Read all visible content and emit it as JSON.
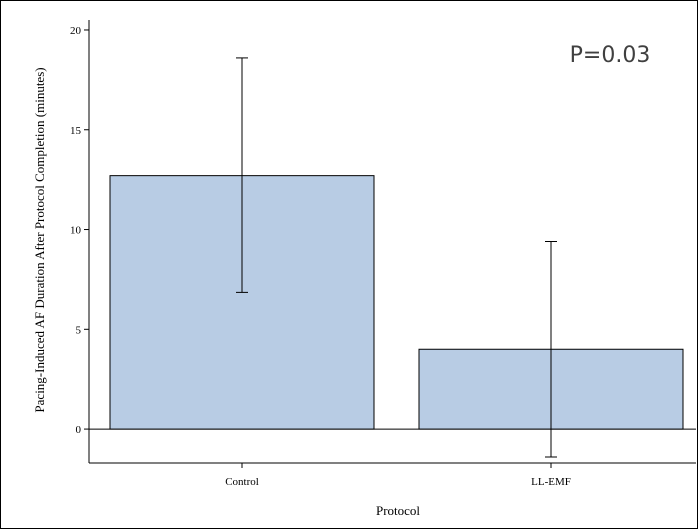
{
  "chart_data": {
    "type": "bar",
    "categories": [
      "Control",
      "LL-EMF"
    ],
    "values": [
      12.7,
      4.0
    ],
    "error_bars": [
      {
        "low": 6.85,
        "high": 18.6
      },
      {
        "low": -1.4,
        "high": 9.4
      }
    ],
    "xlabel": "Protocol",
    "ylabel": "Pacing-Induced AF Duration After Protocol Completion (minutes)",
    "yticks": [
      0,
      5,
      10,
      15,
      20
    ],
    "ylim": [
      -1.7,
      20.5
    ],
    "annotation": "P=0.03",
    "grid": false,
    "legend": "none",
    "colors": {
      "bar_fill": "#b8cce4",
      "bar_stroke": "#000000",
      "axis": "#000000"
    }
  }
}
